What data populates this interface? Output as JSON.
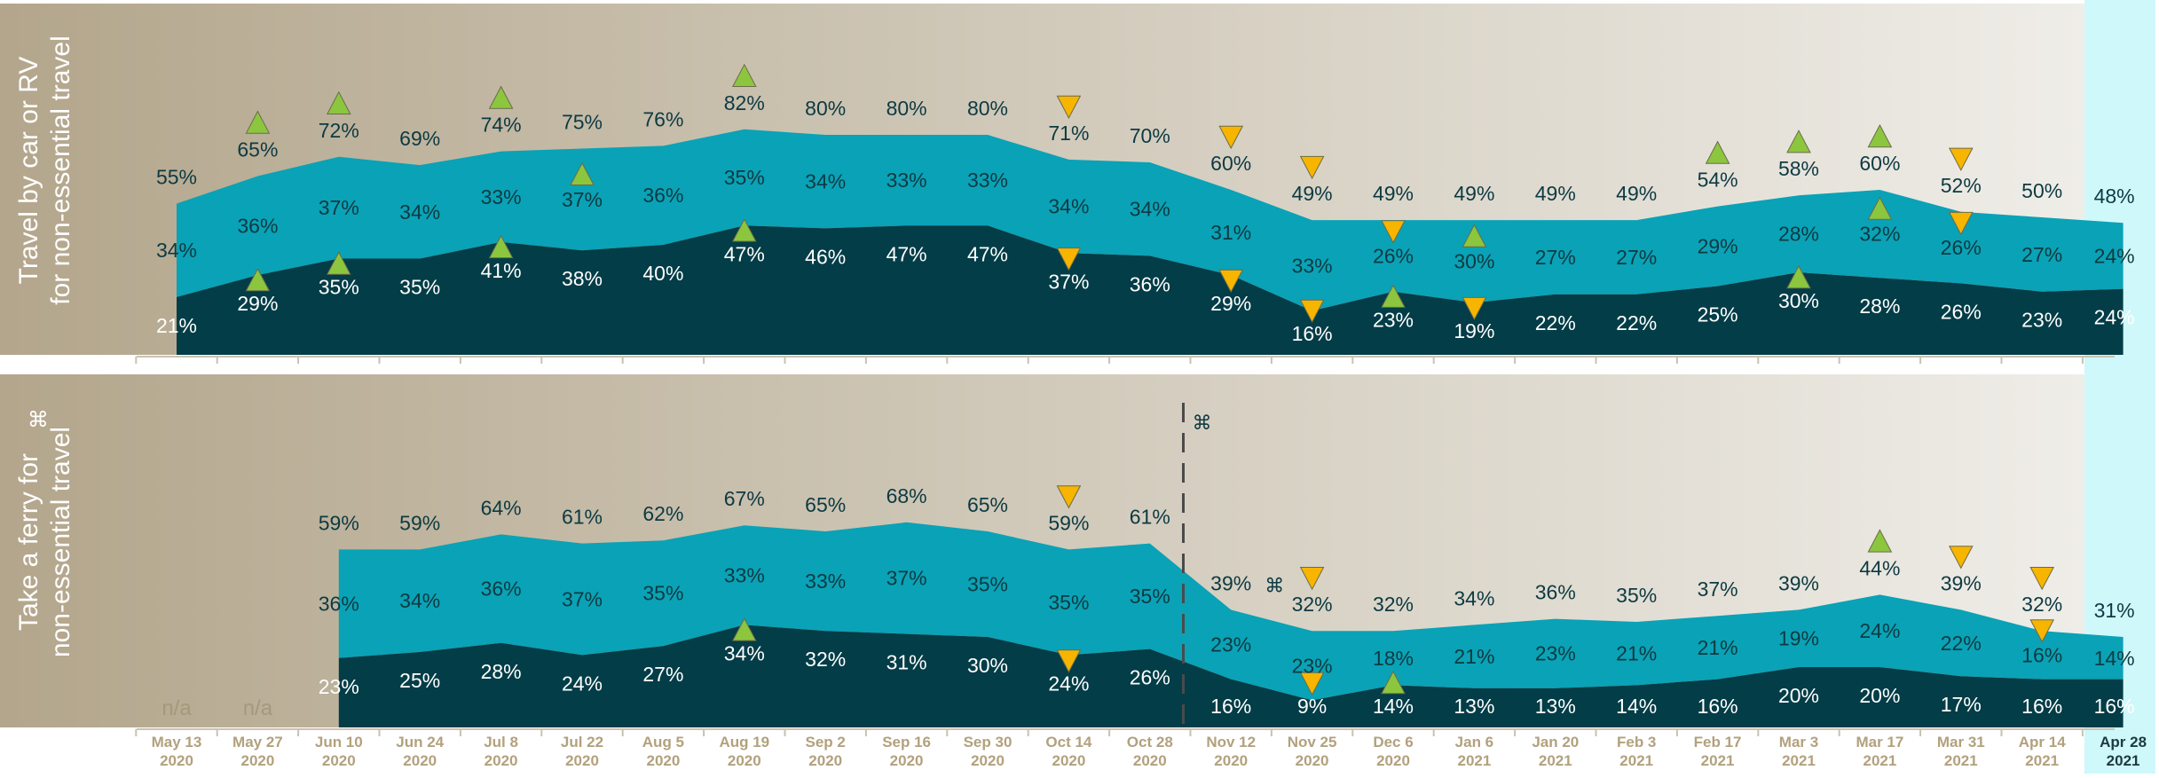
{
  "chart_data": {
    "type": "area",
    "x": [
      {
        "date": "May 13",
        "year": "2020"
      },
      {
        "date": "May 27",
        "year": "2020"
      },
      {
        "date": "Jun 10",
        "year": "2020"
      },
      {
        "date": "Jun 24",
        "year": "2020"
      },
      {
        "date": "Jul 8",
        "year": "2020"
      },
      {
        "date": "Jul 22",
        "year": "2020"
      },
      {
        "date": "Aug 5",
        "year": "2020"
      },
      {
        "date": "Aug 19",
        "year": "2020"
      },
      {
        "date": "Sep 2",
        "year": "2020"
      },
      {
        "date": "Sep 16",
        "year": "2020"
      },
      {
        "date": "Sep 30",
        "year": "2020"
      },
      {
        "date": "Oct 14",
        "year": "2020"
      },
      {
        "date": "Oct 28",
        "year": "2020"
      },
      {
        "date": "Nov 12",
        "year": "2020"
      },
      {
        "date": "Nov 25",
        "year": "2020"
      },
      {
        "date": "Dec 6",
        "year": "2020"
      },
      {
        "date": "Jan 6",
        "year": "2021"
      },
      {
        "date": "Jan 20",
        "year": "2021"
      },
      {
        "date": "Feb 3",
        "year": "2021"
      },
      {
        "date": "Feb 17",
        "year": "2021"
      },
      {
        "date": "Mar 3",
        "year": "2021"
      },
      {
        "date": "Mar 17",
        "year": "2021"
      },
      {
        "date": "Mar 31",
        "year": "2021"
      },
      {
        "date": "Apr 14",
        "year": "2021"
      },
      {
        "date": "Apr 28",
        "year": "2021"
      }
    ],
    "highlight_index": 24,
    "ylim": [
      0,
      100
    ],
    "colors": {
      "lower": "#033d47",
      "upper": "#0aa2b6",
      "label_dark": "#0d3a42",
      "up_marker": "#8cc63f",
      "down_marker": "#f7b500",
      "highlight": "#cff8fb",
      "panel_left": "#b3a68c",
      "panel_right": "#efede8",
      "axis_text": "#b2a17d"
    },
    "panels": [
      {
        "ylabel_lines": [
          "Travel by car or RV",
          "for non-essential travel"
        ],
        "ylabel_marker": "",
        "total": [
          55,
          65,
          72,
          69,
          74,
          75,
          76,
          82,
          80,
          80,
          80,
          71,
          70,
          60,
          49,
          49,
          49,
          49,
          49,
          54,
          58,
          60,
          52,
          50,
          48
        ],
        "series": [
          {
            "values": [
              21,
              29,
              35,
              35,
              41,
              38,
              40,
              47,
              46,
              47,
              47,
              37,
              36,
              29,
              16,
              23,
              19,
              22,
              22,
              25,
              30,
              28,
              26,
              23,
              24
            ],
            "markers": [
              "",
              "up",
              "up",
              "",
              "up",
              "",
              "",
              "up",
              "",
              "",
              "",
              "down",
              "",
              "down",
              "down",
              "up",
              "down",
              "",
              "",
              "",
              "up",
              "",
              "",
              "",
              ""
            ]
          },
          {
            "values": [
              34,
              36,
              37,
              34,
              33,
              37,
              36,
              35,
              34,
              33,
              33,
              34,
              34,
              31,
              33,
              26,
              30,
              27,
              27,
              29,
              28,
              32,
              26,
              27,
              24
            ],
            "markers": [
              "",
              "",
              "",
              "",
              "",
              "up",
              "",
              "",
              "",
              "",
              "",
              "",
              "",
              "",
              "",
              "down",
              "up",
              "",
              "",
              "",
              "",
              "up",
              "down",
              "",
              ""
            ]
          }
        ],
        "total_markers": [
          "",
          "up",
          "up",
          "",
          "up",
          "",
          "",
          "up",
          "",
          "",
          "",
          "down",
          "",
          "down",
          "down",
          "",
          "",
          "",
          "",
          "up",
          "up",
          "up",
          "down",
          "",
          ""
        ],
        "na_label": "",
        "na_indices": [],
        "divider_index": null,
        "divider_marker": "",
        "after_divider_marker": ""
      },
      {
        "ylabel_lines": [
          "Take a ferry for",
          "non-essential travel"
        ],
        "ylabel_marker": "⌘",
        "total": [
          null,
          null,
          59,
          59,
          64,
          61,
          62,
          67,
          65,
          68,
          65,
          59,
          61,
          39,
          32,
          32,
          34,
          36,
          35,
          37,
          39,
          44,
          39,
          32,
          31
        ],
        "series": [
          {
            "values": [
              null,
              null,
              23,
              25,
              28,
              24,
              27,
              34,
              32,
              31,
              30,
              24,
              26,
              16,
              9,
              14,
              13,
              13,
              14,
              16,
              20,
              20,
              17,
              16,
              16
            ],
            "markers": [
              "",
              "",
              "",
              "",
              "",
              "",
              "",
              "up",
              "",
              "",
              "",
              "down",
              "",
              "",
              "down",
              "up",
              "",
              "",
              "",
              "",
              "",
              "",
              "",
              "",
              ""
            ]
          },
          {
            "values": [
              null,
              null,
              36,
              34,
              36,
              37,
              35,
              33,
              33,
              37,
              35,
              35,
              35,
              23,
              23,
              18,
              21,
              23,
              21,
              21,
              19,
              24,
              22,
              16,
              14
            ],
            "markers": [
              "",
              "",
              "",
              "",
              "",
              "",
              "",
              "",
              "",
              "",
              "",
              "",
              "",
              "",
              "",
              "",
              "",
              "",
              "",
              "",
              "",
              "",
              "",
              "down",
              ""
            ]
          }
        ],
        "total_markers": [
          "",
          "",
          "",
          "",
          "",
          "",
          "",
          "",
          "",
          "",
          "",
          "down",
          "",
          "",
          "down",
          "",
          "",
          "",
          "",
          "",
          "",
          "up",
          "down",
          "down",
          ""
        ],
        "na_label": "n/a",
        "na_indices": [
          0,
          1
        ],
        "divider_index": 12.5,
        "divider_marker": "⌘",
        "after_divider_marker": "⌘"
      }
    ]
  }
}
